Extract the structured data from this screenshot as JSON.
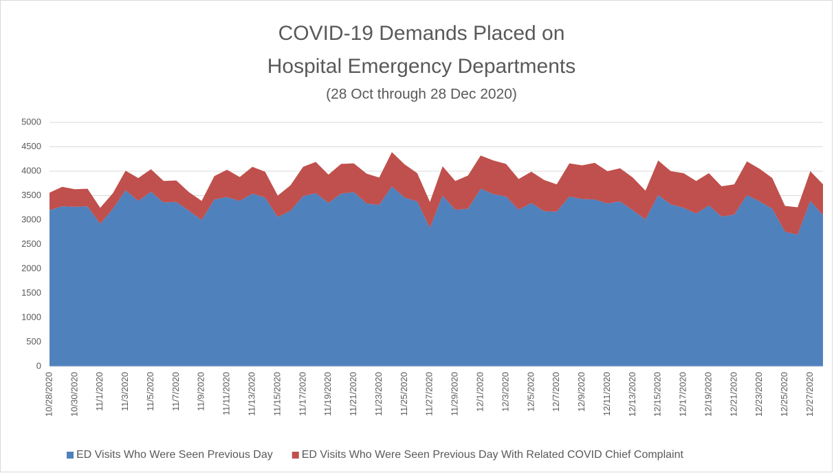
{
  "chart_data": {
    "type": "stacked_area",
    "title": [
      "COVID-19 Demands Placed on",
      "Hospital Emergency Departments"
    ],
    "subtitle": "(28 Oct through 28 Dec 2020)",
    "categories": [
      "10/28/2020",
      null,
      "10/30/2020",
      null,
      "11/1/2020",
      null,
      "11/3/2020",
      null,
      "11/5/2020",
      null,
      "11/7/2020",
      null,
      "11/9/2020",
      null,
      "11/11/2020",
      null,
      "11/13/2020",
      null,
      "11/15/2020",
      null,
      "11/17/2020",
      null,
      "11/19/2020",
      null,
      "11/21/2020",
      null,
      "11/23/2020",
      null,
      "11/25/2020",
      null,
      "11/27/2020",
      null,
      "11/29/2020",
      null,
      "12/1/2020",
      null,
      "12/3/2020",
      null,
      "12/5/2020",
      null,
      "12/7/2020",
      null,
      "12/9/2020",
      null,
      "12/11/2020",
      null,
      "12/13/2020",
      null,
      "12/15/2020",
      null,
      "12/17/2020",
      null,
      "12/19/2020",
      null,
      "12/21/2020",
      null,
      "12/23/2020",
      null,
      "12/25/2020",
      null,
      "12/27/2020",
      null
    ],
    "series": [
      {
        "name": "ED Visits Who Were Seen Previous Day",
        "color": "#4f81bd",
        "values": [
          3200,
          3280,
          3270,
          3280,
          2920,
          3230,
          3610,
          3390,
          3580,
          3360,
          3370,
          3190,
          3000,
          3420,
          3470,
          3390,
          3540,
          3460,
          3060,
          3190,
          3490,
          3550,
          3350,
          3540,
          3570,
          3340,
          3310,
          3690,
          3460,
          3380,
          2840,
          3500,
          3210,
          3230,
          3640,
          3530,
          3480,
          3210,
          3350,
          3180,
          3170,
          3480,
          3430,
          3420,
          3340,
          3380,
          3200,
          3010,
          3510,
          3320,
          3250,
          3130,
          3300,
          3070,
          3110,
          3510,
          3380,
          3230,
          2760,
          2700,
          3390,
          3100
        ]
      },
      {
        "name": "ED Visits Who Were Seen Previous Day With Related COVID Chief Complaint",
        "color": "#c0504d",
        "values": [
          360,
          400,
          360,
          360,
          330,
          320,
          400,
          470,
          460,
          440,
          440,
          380,
          390,
          480,
          560,
          490,
          550,
          530,
          440,
          520,
          600,
          640,
          580,
          610,
          590,
          610,
          560,
          700,
          680,
          580,
          530,
          600,
          590,
          680,
          680,
          690,
          670,
          630,
          640,
          640,
          560,
          680,
          690,
          750,
          660,
          680,
          670,
          590,
          710,
          680,
          710,
          670,
          660,
          620,
          620,
          690,
          670,
          630,
          530,
          560,
          610,
          630
        ]
      }
    ],
    "ylim": [
      0,
      5000
    ],
    "yticks": [
      0,
      500,
      1000,
      1500,
      2000,
      2500,
      3000,
      3500,
      4000,
      4500,
      5000
    ],
    "grid": true,
    "legend": "bottom"
  }
}
